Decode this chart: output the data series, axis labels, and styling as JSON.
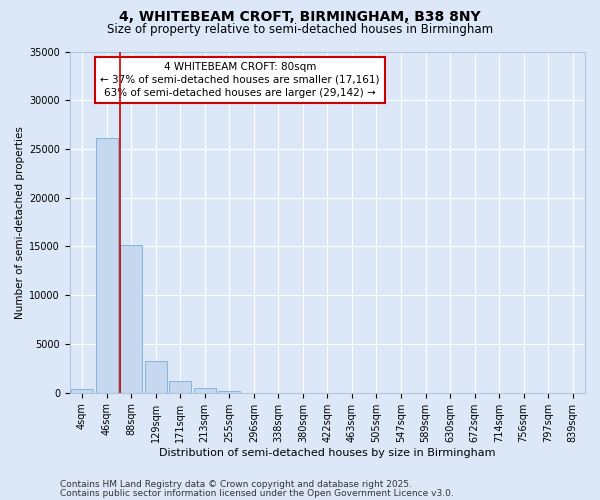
{
  "title_line1": "4, WHITEBEAM CROFT, BIRMINGHAM, B38 8NY",
  "title_line2": "Size of property relative to semi-detached houses in Birmingham",
  "xlabel": "Distribution of semi-detached houses by size in Birmingham",
  "ylabel": "Number of semi-detached properties",
  "categories": [
    "4sqm",
    "46sqm",
    "88sqm",
    "129sqm",
    "171sqm",
    "213sqm",
    "255sqm",
    "296sqm",
    "338sqm",
    "380sqm",
    "422sqm",
    "463sqm",
    "505sqm",
    "547sqm",
    "589sqm",
    "630sqm",
    "672sqm",
    "714sqm",
    "756sqm",
    "797sqm",
    "839sqm"
  ],
  "bar_values": [
    350,
    26100,
    15200,
    3300,
    1200,
    500,
    200,
    0,
    0,
    0,
    0,
    0,
    0,
    0,
    0,
    0,
    0,
    0,
    0,
    0,
    0
  ],
  "bar_color": "#c5d8f0",
  "bar_edge_color": "#7aaed4",
  "vline_x_bar_index": 2,
  "annotation_text": "4 WHITEBEAM CROFT: 80sqm\n← 37% of semi-detached houses are smaller (17,161)\n63% of semi-detached houses are larger (29,142) →",
  "annotation_box_color": "#ffffff",
  "annotation_box_edge_color": "#cc0000",
  "vline_color": "#cc0000",
  "ylim": [
    0,
    35000
  ],
  "yticks": [
    0,
    5000,
    10000,
    15000,
    20000,
    25000,
    30000,
    35000
  ],
  "background_color": "#dce8f8",
  "grid_color": "#ffffff",
  "footer_line1": "Contains HM Land Registry data © Crown copyright and database right 2025.",
  "footer_line2": "Contains public sector information licensed under the Open Government Licence v3.0.",
  "title_fontsize": 10,
  "subtitle_fontsize": 8.5,
  "axis_label_fontsize": 8,
  "tick_fontsize": 7,
  "annotation_fontsize": 7.5,
  "footer_fontsize": 6.5,
  "ylabel_fontsize": 7.5
}
